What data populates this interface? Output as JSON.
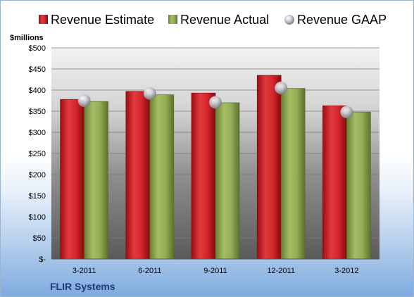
{
  "chart_data": {
    "type": "bar",
    "categories": [
      "3-2011",
      "6-2011",
      "9-2011",
      "12-2011",
      "3-2012"
    ],
    "series": [
      {
        "name": "Revenue Estimate",
        "values": [
          378,
          397,
          393,
          435,
          363
        ],
        "color": "#cc1f24"
      },
      {
        "name": "Revenue Actual",
        "values": [
          373,
          389,
          370,
          404,
          348
        ],
        "color": "#8fa84e"
      },
      {
        "name": "Revenue GAAP",
        "values": [
          375,
          392,
          371,
          405,
          348
        ],
        "marker": "sphere",
        "color": "#b8bcc4"
      }
    ],
    "ylabel": "$millions",
    "ylim": [
      0,
      500
    ],
    "yticks": [
      "$-",
      "$50",
      "$100",
      "$150",
      "$200",
      "$250",
      "$300",
      "$350",
      "$400",
      "$450",
      "$500"
    ],
    "grid": true,
    "legend_position": "top"
  },
  "footer": {
    "company": "FLIR Systems"
  }
}
